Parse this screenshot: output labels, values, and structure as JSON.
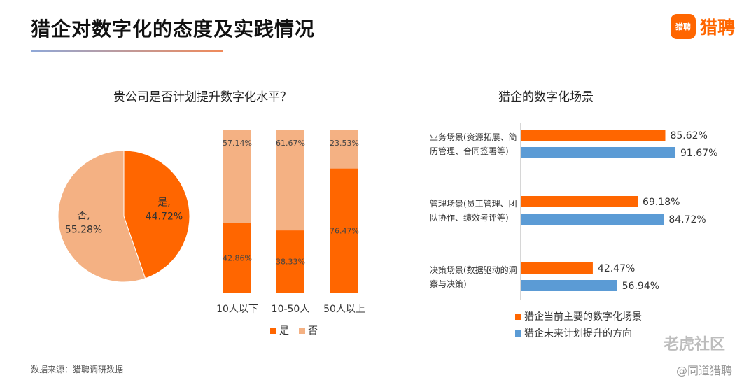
{
  "header": {
    "title": "猎企对数字化的态度及实践情况",
    "logo_mark": "猎聘",
    "logo_text": "猎聘"
  },
  "colors": {
    "orange": "#ff6600",
    "peach": "#f4b183",
    "blue": "#5b9bd5"
  },
  "footer": {
    "source": "数据来源：猎聘调研数据",
    "watermark": "老虎社区",
    "watermark_sub": "@同道猎聘"
  },
  "chart_data": [
    {
      "type": "pie",
      "title": "贵公司是否计划提升数字化水平？",
      "slices": [
        {
          "label": "是,",
          "value": 44.72,
          "display": "44.72%"
        },
        {
          "label": "否,",
          "value": 55.28,
          "display": "55.28%"
        }
      ]
    },
    {
      "type": "bar",
      "stacked": true,
      "categories": [
        "10人以下",
        "10-50人",
        "50人以上"
      ],
      "series": [
        {
          "name": "是",
          "values": [
            42.86,
            38.33,
            76.47
          ],
          "display": [
            "42.86%",
            "38.33%",
            "76.47%"
          ]
        },
        {
          "name": "否",
          "values": [
            57.14,
            61.67,
            23.53
          ],
          "display": [
            "57.14%",
            "61.67%",
            "23.53%"
          ]
        }
      ],
      "ylim": [
        0,
        100
      ]
    },
    {
      "type": "bar",
      "orientation": "horizontal",
      "title": "猎企的数字化场景",
      "categories": [
        [
          "业务场景(资源拓展、简",
          "历管理、合同签署等)"
        ],
        [
          "管理场景(员工管理、团",
          "队协作、绩效考评等)"
        ],
        [
          "决策场景(数据驱动的洞",
          "察与决策)"
        ]
      ],
      "series": [
        {
          "name": "猎企当前主要的数字化场景",
          "values": [
            85.62,
            69.18,
            42.47
          ],
          "display": [
            "85.62%",
            "69.18%",
            "42.47%"
          ]
        },
        {
          "name": "猎企未来计划提升的方向",
          "values": [
            91.67,
            84.72,
            56.94
          ],
          "display": [
            "91.67%",
            "84.72%",
            "56.94%"
          ]
        }
      ],
      "xlim": [
        0,
        100
      ]
    }
  ]
}
